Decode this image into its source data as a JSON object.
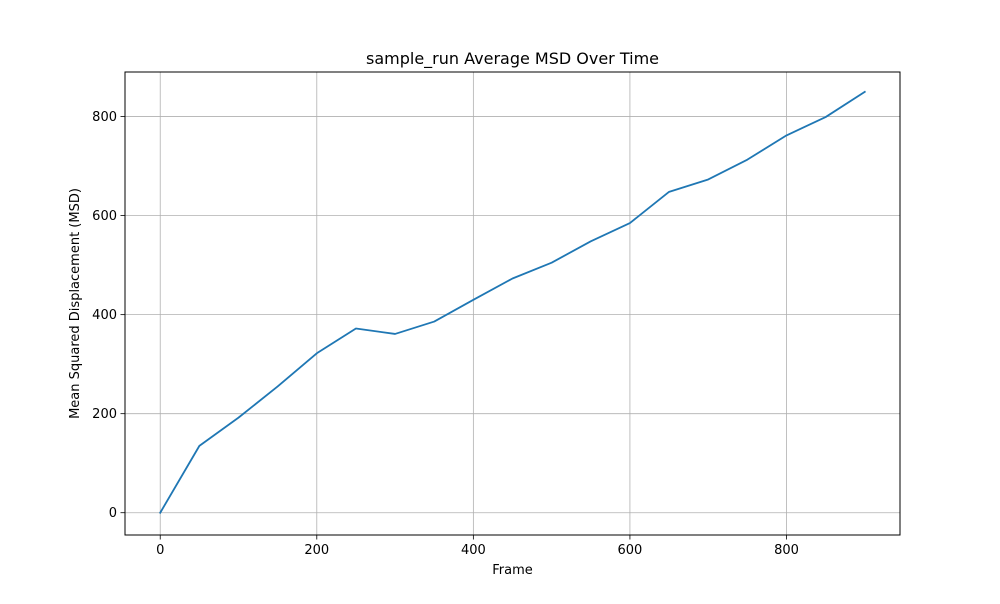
{
  "chart_data": {
    "type": "line",
    "title": "sample_run Average MSD Over Time",
    "xlabel": "Frame",
    "ylabel": "Mean Squared Displacement (MSD)",
    "xlim": [
      -45,
      945
    ],
    "ylim": [
      -45,
      890
    ],
    "xticks": [
      0,
      200,
      400,
      600,
      800
    ],
    "yticks": [
      0,
      200,
      400,
      600,
      800
    ],
    "grid": true,
    "series": [
      {
        "color": "#1f77b4",
        "x": [
          0,
          50,
          100,
          150,
          200,
          250,
          300,
          350,
          400,
          450,
          500,
          550,
          600,
          650,
          700,
          750,
          800,
          850,
          900
        ],
        "y": [
          0,
          135,
          192,
          255,
          322,
          372,
          361,
          386,
          430,
          473,
          505,
          548,
          585,
          648,
          673,
          713,
          762,
          799,
          850
        ]
      }
    ]
  }
}
